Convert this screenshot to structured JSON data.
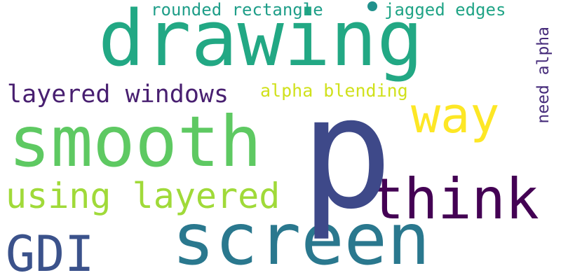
{
  "words": {
    "drawing": "drawing",
    "p": "p",
    "smooth": "smooth",
    "screen": "screen",
    "think": "think",
    "way": "way",
    "gdi": "GDI",
    "using_layered": "using layered",
    "layered_windows": "layered windows",
    "alpha_blending": "alpha blending",
    "rounded_rectangle": "rounded rectangle",
    "jagged_edges": "jagged edges",
    "need_alpha": "need alpha"
  },
  "palette": {
    "drawing": "#22a884",
    "p": "#3e4989",
    "smooth": "#5ec962",
    "screen": "#2a788e",
    "think": "#440154",
    "way": "#fde725",
    "gdi": "#3b528b",
    "using_layered": "#a0da39",
    "layered_windows": "#481f70",
    "alpha_blending": "#d0e11c",
    "rounded_rectangle": "#1f9e89",
    "jagged_edges": "#20a486",
    "need_alpha": "#472d7b",
    "dot": "#21918c",
    "background": "#ffffff"
  }
}
